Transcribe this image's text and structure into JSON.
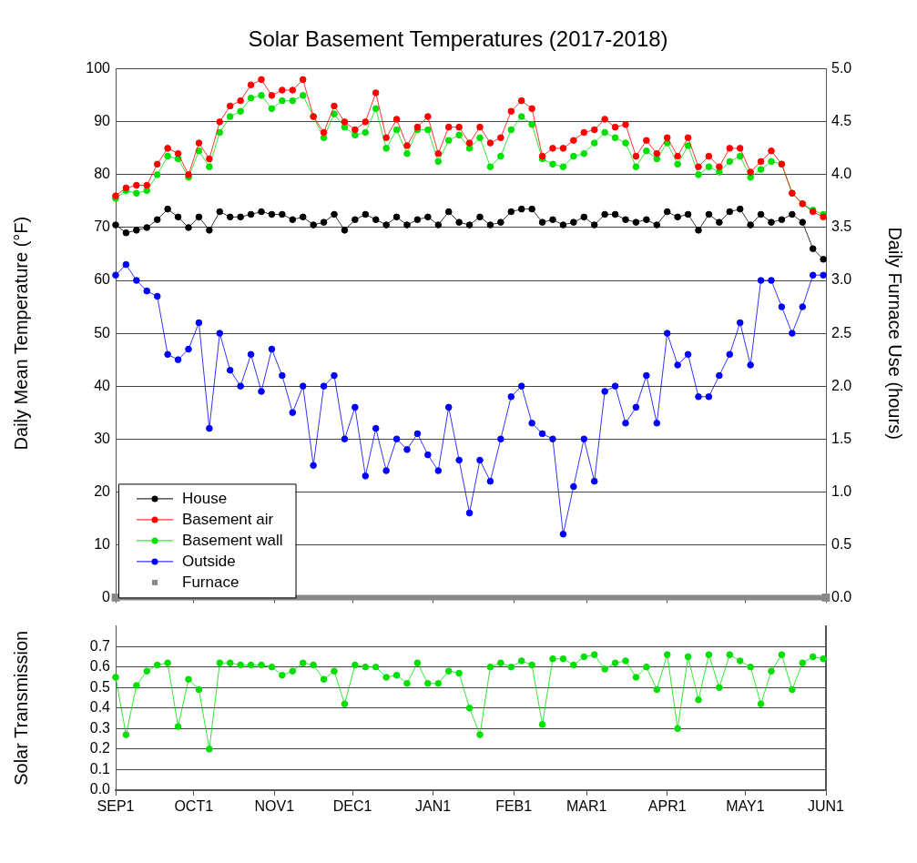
{
  "chart_data": [
    {
      "type": "line",
      "title": "Solar Basement Temperatures (2017-2018)",
      "ylabel": "Daily Mean Temperature (°F)",
      "y2label": "Daily Furnace Use (hours)",
      "x": [
        "2017-09-01",
        "2017-09-05",
        "2017-09-09",
        "2017-09-13",
        "2017-09-17",
        "2017-09-21",
        "2017-09-25",
        "2017-09-29",
        "2017-10-03",
        "2017-10-07",
        "2017-10-11",
        "2017-10-15",
        "2017-10-19",
        "2017-10-23",
        "2017-10-27",
        "2017-10-31",
        "2017-11-04",
        "2017-11-08",
        "2017-11-12",
        "2017-11-16",
        "2017-11-20",
        "2017-11-24",
        "2017-11-28",
        "2017-12-02",
        "2017-12-06",
        "2017-12-10",
        "2017-12-14",
        "2017-12-18",
        "2017-12-22",
        "2017-12-26",
        "2017-12-30",
        "2018-01-03",
        "2018-01-07",
        "2018-01-11",
        "2018-01-15",
        "2018-01-19",
        "2018-01-23",
        "2018-01-27",
        "2018-01-31",
        "2018-02-04",
        "2018-02-08",
        "2018-02-12",
        "2018-02-16",
        "2018-02-20",
        "2018-02-24",
        "2018-02-28",
        "2018-03-04",
        "2018-03-08",
        "2018-03-12",
        "2018-03-16",
        "2018-03-20",
        "2018-03-24",
        "2018-03-28",
        "2018-04-01",
        "2018-04-05",
        "2018-04-09",
        "2018-04-13",
        "2018-04-17",
        "2018-04-21",
        "2018-04-25",
        "2018-04-29",
        "2018-05-03",
        "2018-05-07",
        "2018-05-11",
        "2018-05-15",
        "2018-05-19",
        "2018-05-23",
        "2018-05-27",
        "2018-05-31"
      ],
      "xlim": [
        "2017-09-01",
        "2018-06-01"
      ],
      "xticks": [
        {
          "value": "2017-09-01",
          "label": null
        },
        {
          "value": "2017-10-01",
          "label": null
        },
        {
          "value": "2017-11-01",
          "label": null
        },
        {
          "value": "2017-12-01",
          "label": null
        },
        {
          "value": "2018-01-01",
          "label": null
        },
        {
          "value": "2018-02-01",
          "label": null
        },
        {
          "value": "2018-03-01",
          "label": null
        },
        {
          "value": "2018-04-01",
          "label": null
        },
        {
          "value": "2018-05-01",
          "label": null
        },
        {
          "value": "2018-06-01",
          "label": null
        }
      ],
      "ylim": [
        0,
        100
      ],
      "yticks": [
        0,
        10,
        20,
        30,
        40,
        50,
        60,
        70,
        80,
        90,
        100
      ],
      "y2lim": [
        0,
        5
      ],
      "y2ticks": [
        {
          "value": 0,
          "label": "0.0"
        },
        0.5,
        {
          "value": 1,
          "label": "1.0"
        },
        1.5,
        {
          "value": 2,
          "label": "2.0"
        },
        2.5,
        {
          "value": 3,
          "label": "3.0"
        },
        3.5,
        {
          "value": 4,
          "label": "4.0"
        },
        4.5,
        {
          "value": 5,
          "label": "5.0"
        }
      ],
      "tick_labels": "y",
      "grid": "y",
      "legend": "bottom left",
      "marker": "circle",
      "line_style": "solid",
      "series": [
        {
          "name": "House",
          "color": "#000000",
          "values": [
            70.5,
            69,
            69.5,
            70,
            71.5,
            73.5,
            72,
            70,
            72,
            69.5,
            73,
            72,
            72,
            72.5,
            73,
            72.5,
            72.5,
            71.5,
            72,
            70.5,
            71,
            72.5,
            69.5,
            71.5,
            72.5,
            71.5,
            70.5,
            72,
            70.5,
            71.5,
            72,
            70.5,
            73,
            71,
            70.5,
            72,
            70.5,
            71,
            73,
            73.5,
            73.5,
            71,
            71.5,
            70.5,
            71,
            72,
            70.5,
            72.5,
            72.5,
            71.5,
            71,
            71.5,
            70.5,
            73,
            72,
            72.5,
            69.5,
            72.5,
            71,
            73,
            73.5,
            70.5,
            72.5,
            71,
            71.5,
            72.5,
            71,
            66,
            64
          ]
        },
        {
          "name": "Basement air",
          "color": "#ff0000",
          "values": [
            76,
            77.5,
            78,
            78,
            82,
            85,
            84,
            80,
            86,
            83,
            90,
            93,
            94,
            97,
            98,
            95,
            96,
            96,
            98,
            91,
            88,
            93,
            90,
            88.5,
            90,
            95.5,
            87,
            90.5,
            85.5,
            89,
            91,
            84,
            89,
            89,
            86,
            89,
            86,
            87,
            92,
            94,
            92.5,
            83.5,
            85,
            85,
            86.5,
            88,
            88.5,
            90.5,
            89,
            89.5,
            83.5,
            86.5,
            84,
            87,
            83.5,
            87,
            81.5,
            83.5,
            81.5,
            85,
            85,
            80.5,
            82.5,
            84.5,
            82,
            76.5,
            74.5,
            73,
            72
          ]
        },
        {
          "name": "Basement wall",
          "color": "#00e000",
          "values": [
            75.5,
            77,
            76.5,
            77,
            80,
            83.5,
            83,
            79.5,
            84.5,
            81.5,
            88,
            91,
            92,
            94.5,
            95,
            92.5,
            94,
            94,
            95,
            91,
            87,
            91.5,
            89,
            87.5,
            88,
            92.5,
            85,
            88.5,
            84,
            88.5,
            88.5,
            82.5,
            86.5,
            87.5,
            85,
            87,
            81.5,
            83.5,
            88.5,
            91,
            89.5,
            83,
            82,
            81.5,
            83.5,
            84,
            86,
            88,
            87,
            86,
            81.5,
            84.5,
            83,
            86,
            82,
            85.5,
            80,
            81.5,
            80.5,
            82.5,
            83.5,
            79.5,
            81,
            82.5,
            82,
            76.5,
            74.5,
            73.3,
            72.5
          ]
        },
        {
          "name": "Outside",
          "color": "#0000ff",
          "values": [
            61,
            63,
            60,
            58,
            57,
            46,
            45,
            47,
            52,
            32,
            50,
            43,
            40,
            46,
            39,
            47,
            42,
            35,
            40,
            25,
            40,
            42,
            30,
            36,
            23,
            32,
            24,
            30,
            28,
            31,
            27,
            24,
            36,
            26,
            16,
            26,
            22,
            30,
            38,
            40,
            33,
            31,
            30,
            12,
            21,
            30,
            22,
            39,
            40,
            33,
            36,
            42,
            33,
            50,
            44,
            46,
            38,
            38,
            42,
            46,
            52,
            44,
            60,
            60,
            55,
            50,
            55,
            61,
            61
          ]
        },
        {
          "name": "Furnace",
          "color": "#888888",
          "axis": "y2",
          "marker": "square",
          "x": [
            "2017-09-01",
            "2018-06-01"
          ],
          "values": [
            0,
            0
          ]
        }
      ]
    },
    {
      "type": "line",
      "ylabel": "Solar Transmission",
      "x": [
        "2017-09-01",
        "2017-09-05",
        "2017-09-09",
        "2017-09-13",
        "2017-09-17",
        "2017-09-21",
        "2017-09-25",
        "2017-09-29",
        "2017-10-03",
        "2017-10-07",
        "2017-10-11",
        "2017-10-15",
        "2017-10-19",
        "2017-10-23",
        "2017-10-27",
        "2017-10-31",
        "2017-11-04",
        "2017-11-08",
        "2017-11-12",
        "2017-11-16",
        "2017-11-20",
        "2017-11-24",
        "2017-11-28",
        "2017-12-02",
        "2017-12-06",
        "2017-12-10",
        "2017-12-14",
        "2017-12-18",
        "2017-12-22",
        "2017-12-26",
        "2017-12-30",
        "2018-01-03",
        "2018-01-07",
        "2018-01-11",
        "2018-01-15",
        "2018-01-19",
        "2018-01-23",
        "2018-01-27",
        "2018-01-31",
        "2018-02-04",
        "2018-02-08",
        "2018-02-12",
        "2018-02-16",
        "2018-02-20",
        "2018-02-24",
        "2018-02-28",
        "2018-03-04",
        "2018-03-08",
        "2018-03-12",
        "2018-03-16",
        "2018-03-20",
        "2018-03-24",
        "2018-03-28",
        "2018-04-01",
        "2018-04-05",
        "2018-04-09",
        "2018-04-13",
        "2018-04-17",
        "2018-04-21",
        "2018-04-25",
        "2018-04-29",
        "2018-05-03",
        "2018-05-07",
        "2018-05-11",
        "2018-05-15",
        "2018-05-19",
        "2018-05-23",
        "2018-05-27",
        "2018-05-31"
      ],
      "xlim": [
        "2017-09-01",
        "2018-06-01"
      ],
      "xticks": [
        {
          "value": "2017-09-01",
          "label": "SEP1"
        },
        {
          "value": "2017-10-01",
          "label": "OCT1"
        },
        {
          "value": "2017-11-01",
          "label": "NOV1"
        },
        {
          "value": "2017-12-01",
          "label": "DEC1"
        },
        {
          "value": "2018-01-01",
          "label": "JAN1"
        },
        {
          "value": "2018-02-01",
          "label": "FEB1"
        },
        {
          "value": "2018-03-01",
          "label": "MAR1"
        },
        {
          "value": "2018-04-01",
          "label": "APR1"
        },
        {
          "value": "2018-05-01",
          "label": "MAY1"
        },
        {
          "value": "2018-06-01",
          "label": "JUN1"
        }
      ],
      "ylim": [
        0,
        0.8
      ],
      "yticks": [
        {
          "value": 0,
          "label": "0.0"
        },
        0.1,
        0.2,
        0.3,
        0.4,
        0.5,
        0.6,
        0.7
      ],
      "grid": "y",
      "marker": "circle",
      "line_style": "solid",
      "series": [
        {
          "color": "#00e000",
          "values": [
            0.55,
            0.27,
            0.51,
            0.58,
            0.61,
            0.62,
            0.31,
            0.54,
            0.49,
            0.2,
            0.62,
            0.62,
            0.61,
            0.61,
            0.61,
            0.6,
            0.56,
            0.58,
            0.62,
            0.61,
            0.54,
            0.58,
            0.42,
            0.61,
            0.6,
            0.6,
            0.55,
            0.56,
            0.52,
            0.62,
            0.52,
            0.52,
            0.58,
            0.57,
            0.4,
            0.27,
            0.6,
            0.62,
            0.6,
            0.63,
            0.61,
            0.32,
            0.64,
            0.64,
            0.61,
            0.65,
            0.66,
            0.59,
            0.62,
            0.63,
            0.55,
            0.6,
            0.49,
            0.66,
            0.3,
            0.65,
            0.44,
            0.66,
            0.5,
            0.66,
            0.63,
            0.6,
            0.42,
            0.58,
            0.66,
            0.49,
            0.62,
            0.65,
            0.64
          ]
        }
      ]
    }
  ]
}
